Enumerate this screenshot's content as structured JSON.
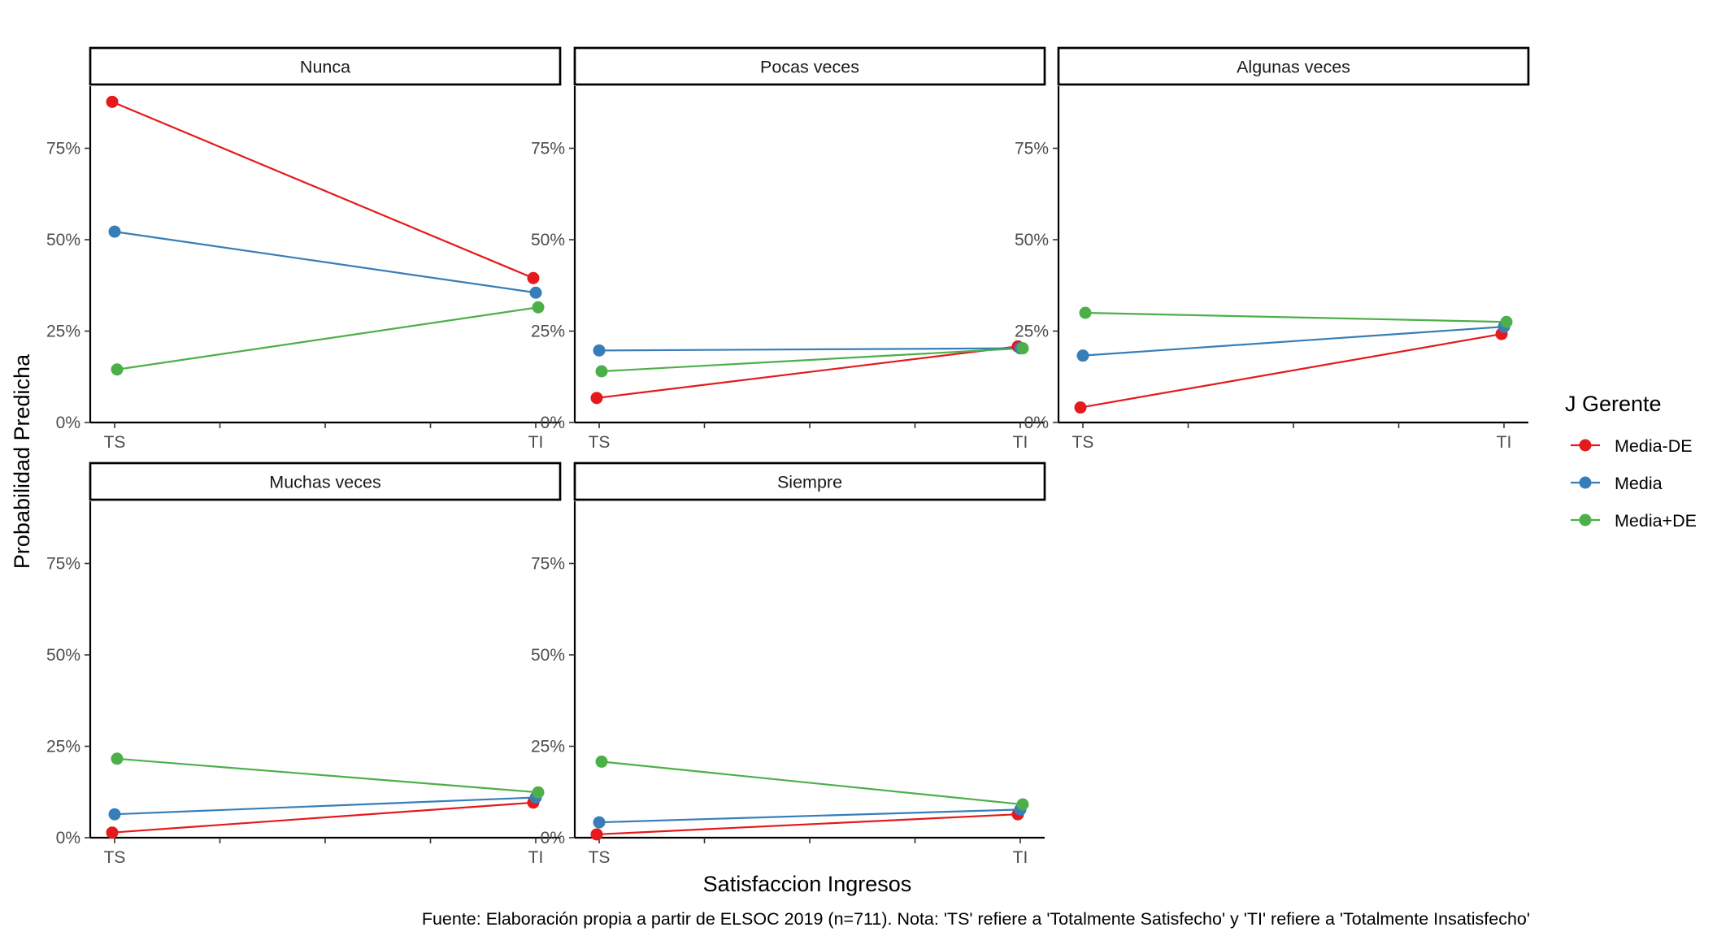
{
  "chart_data": {
    "type": "line",
    "xlabel": "Satisfaccion Ingresos",
    "ylabel": "Probabilidad Predicha",
    "categories": [
      "TS",
      "TI"
    ],
    "ylim": [
      0,
      0.92
    ],
    "y_ticks": [
      0,
      0.25,
      0.5,
      0.75
    ],
    "y_tick_labels": [
      "0%",
      "25%",
      "50%",
      "75%"
    ],
    "legend": {
      "title": "J Gerente",
      "position": "right",
      "entries": [
        {
          "name": "Media-DE",
          "color": "#E41A1C"
        },
        {
          "name": "Media",
          "color": "#377EB8"
        },
        {
          "name": "Media+DE",
          "color": "#4DAF4A"
        }
      ]
    },
    "caption": "Fuente: Elaboración propia a partir de ELSOC 2019 (n=711). Nota: 'TS' refiere a 'Totalmente Satisfecho' y 'TI' refiere a 'Totalmente Insatisfecho'",
    "panels": [
      {
        "title": "Nunca",
        "series": [
          {
            "name": "Media-DE",
            "values": [
              0.877,
              0.395
            ]
          },
          {
            "name": "Media",
            "values": [
              0.522,
              0.355
            ]
          },
          {
            "name": "Media+DE",
            "values": [
              0.145,
              0.315
            ]
          }
        ]
      },
      {
        "title": "Pocas veces",
        "series": [
          {
            "name": "Media-DE",
            "values": [
              0.067,
              0.208
            ]
          },
          {
            "name": "Media",
            "values": [
              0.197,
              0.203
            ]
          },
          {
            "name": "Media+DE",
            "values": [
              0.14,
              0.203
            ]
          }
        ]
      },
      {
        "title": "Algunas veces",
        "series": [
          {
            "name": "Media-DE",
            "values": [
              0.041,
              0.242
            ]
          },
          {
            "name": "Media",
            "values": [
              0.183,
              0.262
            ]
          },
          {
            "name": "Media+DE",
            "values": [
              0.3,
              0.275
            ]
          }
        ]
      },
      {
        "title": "Muchas veces",
        "series": [
          {
            "name": "Media-DE",
            "values": [
              0.014,
              0.096
            ]
          },
          {
            "name": "Media",
            "values": [
              0.064,
              0.11
            ]
          },
          {
            "name": "Media+DE",
            "values": [
              0.216,
              0.124
            ]
          }
        ]
      },
      {
        "title": "Siempre",
        "series": [
          {
            "name": "Media-DE",
            "values": [
              0.009,
              0.064
            ]
          },
          {
            "name": "Media",
            "values": [
              0.042,
              0.077
            ]
          },
          {
            "name": "Media+DE",
            "values": [
              0.208,
              0.091
            ]
          }
        ]
      }
    ]
  }
}
